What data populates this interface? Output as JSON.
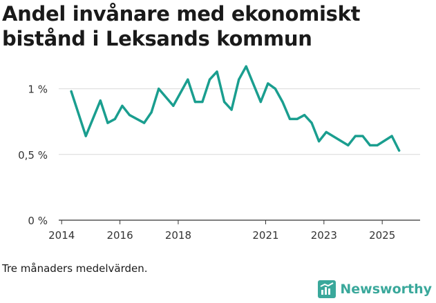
{
  "title": "Andel invånare med ekonomiskt bistånd i Leksands kommun",
  "footnote": "Tre månaders medelvärden.",
  "brand": {
    "name": "Newsworthy",
    "icon": "newsworthy-logo-icon",
    "color": "#3aa89b"
  },
  "colors": {
    "line": "#1a9e8f",
    "grid": "#d9d9d9",
    "axis": "#333333"
  },
  "chart_data": {
    "type": "line",
    "title": "Andel invånare med ekonomiskt bistånd i Leksands kommun",
    "xlabel": "",
    "ylabel": "",
    "xlim": [
      2013.9,
      2026.3
    ],
    "ylim": [
      0,
      1.15
    ],
    "x_ticks": [
      2014,
      2016,
      2018,
      2021,
      2023,
      2025
    ],
    "x_tick_labels": [
      "2014",
      "2016",
      "2018",
      "2021",
      "2023",
      "2025"
    ],
    "y_ticks": [
      0,
      0.5,
      1
    ],
    "y_tick_labels": [
      "0 %",
      "0,5 %",
      "1 %"
    ],
    "grid": true,
    "series": [
      {
        "name": "Andel invånare med ekonomiskt bistånd",
        "x": [
          2014.33,
          2014.83,
          2015.33,
          2015.58,
          2015.83,
          2016.08,
          2016.33,
          2016.83,
          2017.08,
          2017.33,
          2017.83,
          2018.33,
          2018.58,
          2018.83,
          2019.08,
          2019.33,
          2019.58,
          2019.83,
          2020.08,
          2020.33,
          2020.83,
          2021.08,
          2021.33,
          2021.58,
          2021.83,
          2022.08,
          2022.33,
          2022.58,
          2022.83,
          2023.08,
          2023.83,
          2024.08,
          2024.33,
          2024.58,
          2024.83,
          2025.33,
          2025.58
        ],
        "values": [
          0.98,
          0.64,
          0.91,
          0.74,
          0.77,
          0.87,
          0.8,
          0.74,
          0.82,
          1.0,
          0.87,
          1.07,
          0.9,
          0.9,
          1.07,
          1.13,
          0.9,
          0.84,
          1.07,
          1.17,
          0.9,
          1.04,
          1.0,
          0.9,
          0.77,
          0.77,
          0.8,
          0.74,
          0.6,
          0.67,
          0.57,
          0.64,
          0.64,
          0.57,
          0.57,
          0.64,
          0.53
        ]
      }
    ]
  }
}
